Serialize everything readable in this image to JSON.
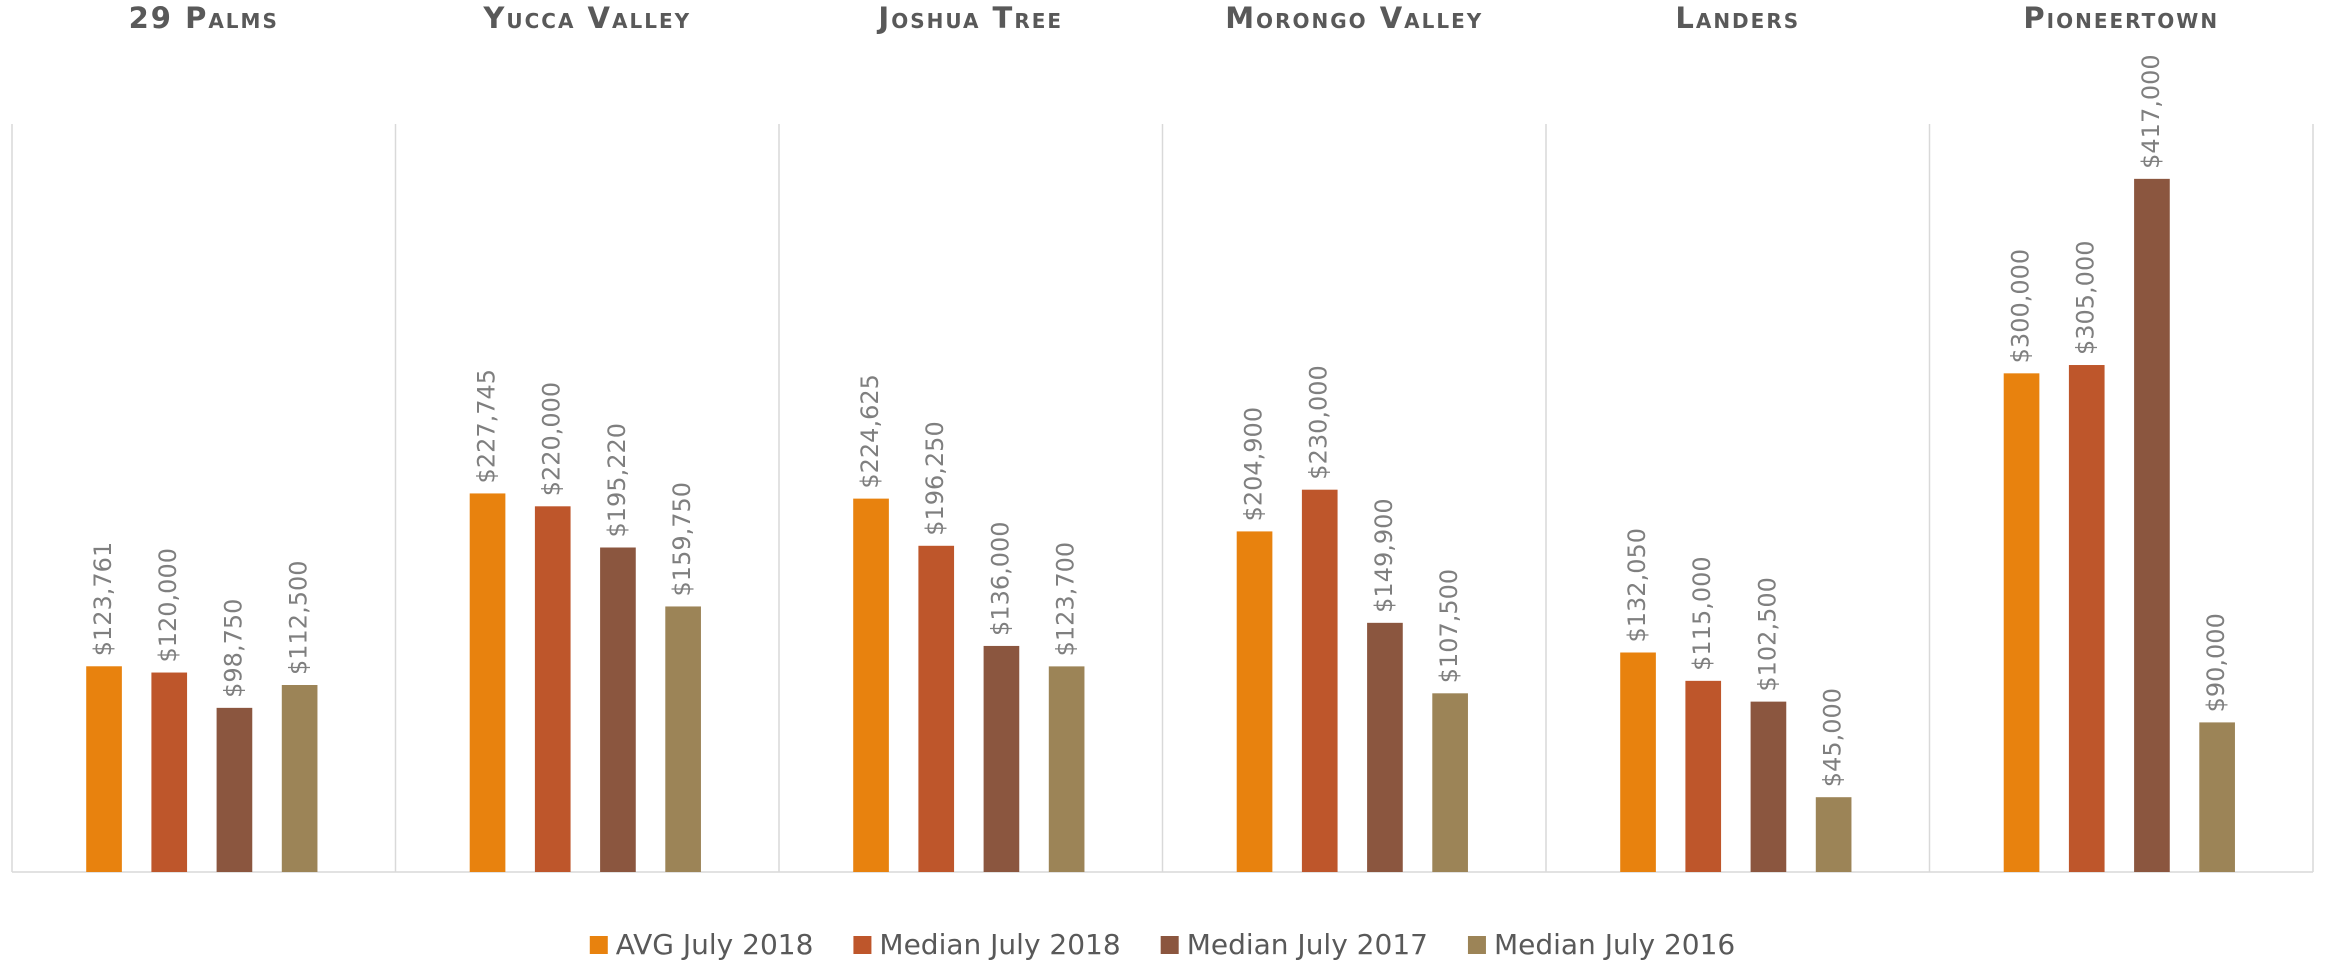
{
  "chart_data": {
    "type": "bar",
    "categories": [
      "29 Palms",
      "Yucca Valley",
      "Joshua Tree",
      "Morongo Valley",
      "Landers",
      "Pioneertown"
    ],
    "series": [
      {
        "name": "AVG July 2018",
        "color": "#e8820e",
        "values": [
          123761,
          227745,
          224625,
          204900,
          132050,
          300000
        ],
        "value_labels": [
          "$123,761",
          "$227,745",
          "$224,625",
          "$204,900",
          "$132,050",
          "$300,000"
        ]
      },
      {
        "name": "Median July 2018",
        "color": "#be562b",
        "values": [
          120000,
          220000,
          196250,
          230000,
          115000,
          305000
        ],
        "value_labels": [
          "$120,000",
          "$220,000",
          "$196,250",
          "$230,000",
          "$115,000",
          "$305,000"
        ]
      },
      {
        "name": "Median July 2017",
        "color": "#8b563f",
        "values": [
          98750,
          195220,
          136000,
          149900,
          102500,
          417000
        ],
        "value_labels": [
          "$98,750",
          "$195,220",
          "$136,000",
          "$149,900",
          "$102,500",
          "$417,000"
        ]
      },
      {
        "name": "Median July 2016",
        "color": "#9c8457",
        "values": [
          112500,
          159750,
          123700,
          107500,
          45000,
          90000
        ],
        "value_labels": [
          "$112,500",
          "$159,750",
          "$123,700",
          "$107,500",
          "$45,000",
          "$90,000"
        ]
      }
    ],
    "ylim": [
      0,
      450000
    ],
    "legend": "bottom"
  }
}
